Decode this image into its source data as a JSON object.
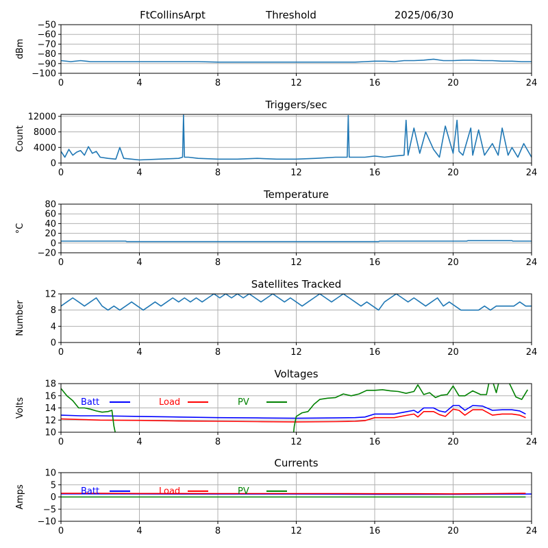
{
  "header": {
    "station": "FtCollinsArpt",
    "subtitle": "Threshold",
    "date": "2025/06/30"
  },
  "colors": {
    "series": "#1f77b4",
    "batt": "#0000ff",
    "load": "#ff0000",
    "pv": "#008000",
    "grid": "#b0b0b0",
    "axis": "#000000"
  },
  "chart_data": [
    {
      "type": "line",
      "title": "",
      "ylabel": "dBm",
      "xlim": [
        0,
        24
      ],
      "ylim": [
        -100,
        -50
      ],
      "xticks": [
        0,
        4,
        8,
        12,
        16,
        20,
        24
      ],
      "yticks": [
        -100,
        -90,
        -80,
        -70,
        -60,
        -50
      ],
      "grid": true,
      "series": [
        {
          "name": "",
          "x": [
            0,
            0.5,
            1,
            1.5,
            2,
            3,
            4,
            5,
            6,
            7,
            8,
            9,
            10,
            11,
            12,
            13,
            14,
            15,
            15.5,
            16,
            16.5,
            17,
            17.5,
            18,
            18.5,
            19,
            19.5,
            20,
            20.5,
            21,
            21.5,
            22,
            22.5,
            23,
            23.5,
            24
          ],
          "y": [
            -87,
            -88,
            -87,
            -88,
            -88,
            -88,
            -88,
            -88,
            -88,
            -88,
            -88.5,
            -88.5,
            -88.5,
            -88.5,
            -88.5,
            -88.5,
            -88.5,
            -88.5,
            -88,
            -87.5,
            -87.5,
            -88,
            -87,
            -87,
            -86.5,
            -85.5,
            -87,
            -87,
            -86.5,
            -86.5,
            -87,
            -87,
            -87.5,
            -87.5,
            -88,
            -88
          ]
        }
      ]
    },
    {
      "type": "line",
      "title": "Triggers/sec",
      "ylabel": "Count",
      "xlim": [
        0,
        24
      ],
      "ylim": [
        0,
        12500
      ],
      "xticks": [
        0,
        4,
        8,
        12,
        16,
        20,
        24
      ],
      "yticks": [
        0,
        4000,
        8000,
        12000
      ],
      "grid": true,
      "series": [
        {
          "name": "",
          "x": [
            0,
            0.2,
            0.4,
            0.6,
            0.8,
            1,
            1.2,
            1.4,
            1.6,
            1.8,
            2,
            2.4,
            2.8,
            3,
            3.2,
            3.6,
            4,
            5,
            6,
            6.2,
            6.25,
            6.3,
            6.5,
            7,
            8,
            9,
            10,
            11,
            12,
            13,
            14,
            14.6,
            14.65,
            14.7,
            15,
            15.5,
            16,
            16.5,
            17,
            17.5,
            17.6,
            17.7,
            18,
            18.3,
            18.6,
            19,
            19.3,
            19.6,
            20,
            20.2,
            20.3,
            20.5,
            20.9,
            21,
            21.3,
            21.6,
            22,
            22.3,
            22.5,
            22.8,
            23,
            23.3,
            23.6,
            24
          ],
          "y": [
            3000,
            1500,
            3500,
            2000,
            2800,
            3200,
            2000,
            4200,
            2500,
            3000,
            1500,
            1200,
            1000,
            4000,
            1200,
            1000,
            800,
            1000,
            1200,
            1500,
            12300,
            1500,
            1500,
            1200,
            1000,
            1000,
            1200,
            1000,
            1000,
            1200,
            1500,
            1500,
            12200,
            1500,
            1500,
            1500,
            1800,
            1500,
            1800,
            2000,
            11000,
            2000,
            9000,
            2500,
            8000,
            3500,
            1500,
            9500,
            2500,
            11000,
            3000,
            2000,
            9000,
            2000,
            8500,
            2000,
            5000,
            2000,
            9000,
            2000,
            4000,
            1500,
            5000,
            1500
          ]
        }
      ]
    },
    {
      "type": "line",
      "title": "Temperature",
      "ylabel": "°C",
      "xlim": [
        0,
        24
      ],
      "ylim": [
        -20,
        80
      ],
      "xticks": [
        0,
        4,
        8,
        12,
        16,
        20,
        24
      ],
      "yticks": [
        -20,
        0,
        20,
        40,
        60,
        80
      ],
      "grid": true,
      "series": [
        {
          "name": "",
          "x": [
            0,
            3.3,
            3.35,
            16.2,
            16.25,
            20.7,
            20.75,
            23,
            23.05,
            24
          ],
          "y": [
            4,
            4,
            3,
            3,
            4,
            4,
            5,
            5,
            4,
            4
          ]
        }
      ]
    },
    {
      "type": "line",
      "title": "Satellites Tracked",
      "ylabel": "Number",
      "xlim": [
        0,
        24
      ],
      "ylim": [
        0,
        12
      ],
      "xticks": [
        0,
        4,
        8,
        12,
        16,
        20,
        24
      ],
      "yticks": [
        0,
        4,
        8,
        12
      ],
      "grid": true,
      "series": [
        {
          "name": "",
          "x": [
            0,
            0.3,
            0.6,
            0.9,
            1.2,
            1.5,
            1.8,
            2.1,
            2.4,
            2.7,
            3.0,
            3.3,
            3.6,
            3.9,
            4.2,
            4.5,
            4.8,
            5.1,
            5.4,
            5.7,
            6.0,
            6.3,
            6.6,
            6.9,
            7.2,
            7.5,
            7.8,
            8.1,
            8.4,
            8.7,
            9.0,
            9.3,
            9.6,
            9.9,
            10.2,
            10.5,
            10.8,
            11.1,
            11.4,
            11.7,
            12.0,
            12.3,
            12.6,
            12.9,
            13.2,
            13.5,
            13.8,
            14.1,
            14.4,
            14.7,
            15.0,
            15.3,
            15.6,
            15.9,
            16.2,
            16.5,
            16.8,
            17.1,
            17.4,
            17.7,
            18.0,
            18.3,
            18.6,
            18.9,
            19.2,
            19.5,
            19.8,
            20.1,
            20.4,
            20.7,
            21.0,
            21.3,
            21.6,
            21.9,
            22.2,
            22.5,
            22.8,
            23.1,
            23.4,
            23.7,
            24.0
          ],
          "y": [
            9,
            10,
            11,
            10,
            9,
            10,
            11,
            9,
            8,
            9,
            8,
            9,
            10,
            9,
            8,
            9,
            10,
            9,
            10,
            11,
            10,
            11,
            10,
            11,
            10,
            11,
            12,
            11,
            12,
            11,
            12,
            11,
            12,
            11,
            10,
            11,
            12,
            11,
            10,
            11,
            10,
            9,
            10,
            11,
            12,
            11,
            10,
            11,
            12,
            11,
            10,
            9,
            10,
            9,
            8,
            10,
            11,
            12,
            11,
            10,
            11,
            10,
            9,
            10,
            11,
            9,
            10,
            9,
            8,
            8,
            8,
            8,
            9,
            8,
            9,
            9,
            9,
            9,
            10,
            9,
            9
          ]
        }
      ]
    },
    {
      "type": "line",
      "title": "Voltages",
      "ylabel": "Volts",
      "xlim": [
        0,
        24
      ],
      "ylim": [
        10,
        18
      ],
      "xticks": [
        0,
        4,
        8,
        12,
        16,
        20,
        24
      ],
      "yticks": [
        10,
        12,
        14,
        16,
        18
      ],
      "grid": true,
      "legend": "inline-top",
      "series": [
        {
          "name": "Batt",
          "x": [
            0,
            1,
            2,
            4,
            6,
            8,
            10,
            12,
            14,
            15,
            15.5,
            16,
            16.5,
            17,
            17.5,
            18,
            18.2,
            18.5,
            19,
            19.3,
            19.6,
            20,
            20.3,
            20.6,
            21,
            21.5,
            22,
            22.5,
            23,
            23.4,
            23.7
          ],
          "y": [
            12.8,
            12.7,
            12.7,
            12.6,
            12.5,
            12.4,
            12.35,
            12.3,
            12.35,
            12.4,
            12.5,
            13.0,
            13.0,
            13.0,
            13.3,
            13.6,
            13.2,
            14.0,
            14.0,
            13.5,
            13.3,
            14.4,
            14.4,
            13.6,
            14.4,
            14.3,
            13.6,
            13.7,
            13.7,
            13.5,
            13.0
          ]
        },
        {
          "name": "Load",
          "x": [
            0,
            1,
            2,
            4,
            6,
            8,
            10,
            12,
            14,
            15,
            15.5,
            16,
            16.5,
            17,
            17.5,
            18,
            18.2,
            18.5,
            19,
            19.3,
            19.6,
            20,
            20.3,
            20.6,
            21,
            21.5,
            22,
            22.5,
            23,
            23.4,
            23.7
          ],
          "y": [
            12.2,
            12.1,
            12.0,
            11.95,
            11.85,
            11.8,
            11.75,
            11.7,
            11.75,
            11.8,
            11.9,
            12.4,
            12.4,
            12.4,
            12.7,
            13.0,
            12.5,
            13.4,
            13.4,
            12.9,
            12.6,
            13.8,
            13.6,
            12.8,
            13.7,
            13.7,
            12.8,
            13.0,
            13.0,
            12.8,
            12.4
          ]
        },
        {
          "name": "PV",
          "x": [
            0,
            0.3,
            0.6,
            0.9,
            1.2,
            1.5,
            1.8,
            2.1,
            2.4,
            2.6,
            2.7,
            2.8,
            11.85,
            11.9,
            12.0,
            12.3,
            12.6,
            12.9,
            13.2,
            13.6,
            14.0,
            14.4,
            14.8,
            15.2,
            15.6,
            16.0,
            16.4,
            16.8,
            17.2,
            17.6,
            18.0,
            18.2,
            18.5,
            18.8,
            19.1,
            19.4,
            19.7,
            20.0,
            20.3,
            20.6,
            21.0,
            21.4,
            21.7,
            21.85,
            22.0,
            22.2,
            22.35,
            22.5,
            22.8,
            23.2,
            23.5,
            23.8
          ],
          "y": [
            17.2,
            16.0,
            15.2,
            14.0,
            14.0,
            13.8,
            13.5,
            13.3,
            13.4,
            13.6,
            11.0,
            9.5,
            9.5,
            11.0,
            12.6,
            13.2,
            13.4,
            14.6,
            15.4,
            15.6,
            15.7,
            16.3,
            16.0,
            16.3,
            16.9,
            16.9,
            17.0,
            16.8,
            16.7,
            16.4,
            16.7,
            17.8,
            16.2,
            16.5,
            15.7,
            16.1,
            16.2,
            17.6,
            16.0,
            16.0,
            16.8,
            16.2,
            16.2,
            18.5,
            18.5,
            16.5,
            18.5,
            18.5,
            18.5,
            15.8,
            15.4,
            17.0
          ]
        }
      ]
    },
    {
      "type": "line",
      "title": "Currents",
      "ylabel": "Amps",
      "xlim": [
        0,
        24
      ],
      "ylim": [
        -10,
        10
      ],
      "xticks": [
        0,
        4,
        8,
        12,
        16,
        20,
        24
      ],
      "yticks": [
        -10,
        -5,
        0,
        5,
        10
      ],
      "grid": true,
      "legend": "inline-top",
      "series": [
        {
          "name": "Batt",
          "x": [
            0,
            4,
            8,
            12,
            16,
            20,
            24
          ],
          "y": [
            1.3,
            1.25,
            1.2,
            1.2,
            1.1,
            1.1,
            1.2
          ]
        },
        {
          "name": "Load",
          "x": [
            0,
            2,
            4,
            6,
            8,
            10,
            12,
            14,
            16,
            18,
            20,
            22,
            23.7
          ],
          "y": [
            1.5,
            1.5,
            1.45,
            1.45,
            1.4,
            1.4,
            1.4,
            1.4,
            1.35,
            1.35,
            1.3,
            1.4,
            1.5
          ]
        },
        {
          "name": "PV",
          "x": [
            0,
            4,
            8,
            12,
            16,
            20,
            23.7
          ],
          "y": [
            0,
            0,
            0,
            0,
            0,
            0,
            0
          ]
        }
      ]
    }
  ]
}
